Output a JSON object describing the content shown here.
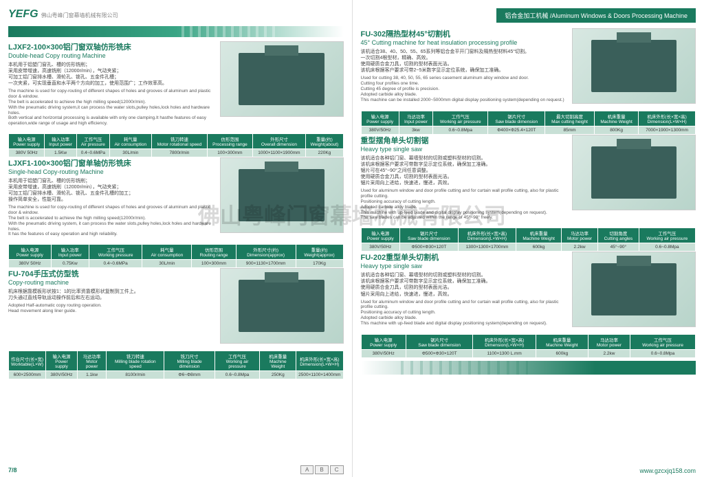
{
  "logo": "YEFG",
  "logoSub": "佛山粤峰门窗幕墙机械有限公司",
  "category": "铝合金加工机械 /Aluminum Windows & Doors Processing Machine",
  "watermark": "佛山粤峰门窗幕墙机械有限公司",
  "pageNum": "7/8",
  "tabs": [
    "A",
    "B",
    "C"
  ],
  "url": "www.gzcxjq158.com",
  "left": [
    {
      "cn": "LJXF2-100×300铝门窗双轴仿形铣床",
      "en": "Double-head Copy routing Machine",
      "desc": "本机用于铝塑门窗孔、槽的仿形铣削；\n采用皮带增速，高速铣削（12000r/min），气动夹紧；\n可加工铝门窗排水槽、滑轮孔、锁孔、五金件孔槽；\n一次夹紧，可实现垂直和水平两个方向的加工，使用范围广；工作效率高。",
      "descEn": "The machine is used for copy-routing of different shapes of holes and grooves of aluminum and plastic door & window.\nThe belt is accelerated to achieve the high milling speed(12000r/min).\nWith the pneumatic driving system,it can process the water slots,pulley holes,lock holes and hardware holes.\nBoth vertical and horizontal processing is available with only one clamping.It hasthe features of easy operation,wide range of usage and high efficiency.",
      "spec": {
        "h": [
          "输入电源\nPower supply",
          "输入功率\nInput power",
          "工作气压\nAir pressure",
          "耗气量\nAir consumption",
          "铣刀转速\nMotor rotational speed",
          "仿形范围\nProcessing range",
          "外形尺寸\nOverall dimension",
          "重量(约)\nWeight(about)"
        ],
        "r": [
          "380V 50Hz",
          "1.5Kw",
          "0.4~0.6MPa",
          "30L/min",
          "7800r/min",
          "100×300mm",
          "1000×1100×1900mm",
          "220Kg"
        ]
      }
    },
    {
      "cn": "LJXF1-100×300铝门窗单轴仿形铣床",
      "en": "Single-head Copy-routing Machine",
      "desc": "本机用于铝塑门窗孔、槽的仿形铣削；\n采用皮带增速，高速铣削（12000r/min），气动夹紧；\n可加工铝门窗排水槽、滑轮孔、锁孔、五金件孔槽的加工；\n操作简单安全，性能可靠。",
      "descEn": "The machine is used for copy-routing of different shapes of holes and grooves of aluminum and plastic door & window.\nThe belt is accelerated to achieve the high milling speed(12000r/min).\nWith the pneumatic driving system, it can process the water slots,pulley holes,lock holes and hardware holes.\nIt has the features of easy operation and high reliability.",
      "spec": {
        "h": [
          "输入电源\nPower supply",
          "输入功率\nInput power",
          "工作气压\nWorking pressure",
          "耗气量\nAir consumption",
          "仿形范围\nRouting range",
          "外形尺寸(约)\nDimension(approx)",
          "重量(约)\nWeight(approx)"
        ],
        "r": [
          "380V 50Hz",
          "0.75Kw",
          "0.4~0.6MPa",
          "30L/min",
          "100×300mm",
          "900×1130×1700mm",
          "170Kg"
        ]
      }
    },
    {
      "cn": "FU-704手压式仿型铣",
      "en": "Copy-routing machine",
      "desc": "机床根据靠模板形状按1：1的比率资靠模形状复制到工件上。\n刀头通过直线导轨运动操作前后和左右运动。",
      "descEn": "Adopted Half-automatic copy routing operation.\nHead movement along liner guide.",
      "spec": {
        "h": [
          "作台尺寸(长×宽)\nWorktable(L×W)",
          "输入电源\nPower supply",
          "马达功率\nMotor power",
          "铣刀转速\nMilling blade rotation speed",
          "铣刀尺寸\nMilling blade dimension",
          "工作气压\nWorking air pressure",
          "机床重量\nMachine Weight",
          "机床外形(长×宽×高)\nDimension(L×W×H)"
        ],
        "r": [
          "600×2500mm",
          "380V/50Hz",
          "1.1kw",
          "8100r/min",
          "Φ6~Φ8mm",
          "0.6~0.8Mpa",
          "250Kg",
          "2500×1100×1400mm"
        ]
      }
    }
  ],
  "right": [
    {
      "cn": "FU-302隔热型材45°切割机",
      "en": "45° Cutting machine for heat insulation processing profile",
      "desc": "该机适合38、40、50、55、65系列等铝合金平开门窗料及隔热型材料45°切割。\n一次切割4根型材，精确、高效。\n使用硬质合金刀具，切割的型材表面光洁。\n该机床根据客户要求可带2~5米数字显示定位系统，确保加工准确。",
      "descEn": "Used for cutting 38, 40, 50, 55, 65 series casement aluminum alloy window and door.\nCutting four profiles one time.\nCutting 45 degree of profile is precision.\nAdopted carbide alloy blade.\nThis machine can be installed 2000~5000mm digital display positioning system(depending on request.)",
      "spec": {
        "h": [
          "输入电源\nPower supply",
          "马达功率\nInput power",
          "工作气压\nWorking air pressure",
          "锯片尺寸\nSaw blade dimension",
          "最大切割高度\nMax cutting height",
          "机床重量\nMachine Weight",
          "机床外形(长×宽×高)\nDimension(L×W×H)"
        ],
        "r": [
          "380V/50Hz",
          "3kw",
          "0.6~0.8Mpa",
          "Φ400×Φ25.4×120T",
          "85mm",
          "800Kg",
          "7000×1900×1300mm"
        ]
      }
    },
    {
      "cn": "重型摆角单头切割锯",
      "en": "Heavy type single saw",
      "desc": "该机适合各种铝门窗、幕墙型材的切割或塑料型材的切割。\n该机床根据客户要求可带数字显示定位系统，确保加工准确。\n锯片可在45°~90°之间任意调整。\n使用硬质合金刀具，切割的型材表面光洁。\n锯片采用向上进给，快速进，慢进，高效。",
      "descEn": "Used for aluminum window and door profile cutting and for curtain wall profile cutting, also for plastic profile cutting.\nPositioning accuracy of cutting length.\nAdopted carbide alloy blade.\nThis machine with up-feed blade and digital display positioning system(depending on request).\nThe saw blades can be adjusted within the range of 45°~90° freely.",
      "spec": {
        "h": [
          "输入电源\nPower supply",
          "锯片尺寸\nSaw blade dimension",
          "机床外形(长×宽×高)\nDimension(L×W×H)",
          "机床重量\nMachine Weight",
          "马达功率\nMotor power",
          "切割角度\nCutting angles",
          "工作气压\nWorking air pressure"
        ],
        "r": [
          "380V/50Hz",
          "Φ500×Φ30×120T",
          "1300×1300×1700mm",
          "600kg",
          "2.2kw",
          "45°~90°",
          "0.6~0.8Mpa"
        ]
      }
    },
    {
      "cn": "FU-202重型单头切割机",
      "en": "Heavy type single saw",
      "desc": "该机适合各种铝门窗、幕墙型材的切割或塑料型材的切割。\n该机床根据客户要求可带数字显示定位系统，确保加工准确。\n使用硬质合金刀具，切割的型材表面光洁。\n锯片采用向上进给，快速进，慢进，高效。",
      "descEn": "Used for aluminum window and door profile cutting and for curtain wall profile cutting, also for plastic profile cutting.\nPositioning accuracy of cutting length.\nAdopted carbide alloy blade.\nThis machine with up-feed blade and digital display positioning system(depending on request).",
      "spec": {
        "h": [
          "输入电源\nPower supply",
          "锯片尺寸\nSaw blade dimension",
          "机床外形(长×宽×高)\nDimension(L×W×H)",
          "机床重量\nMachine Weight",
          "马达功率\nMotor power",
          "工作气压\nWorking air pressure"
        ],
        "r": [
          "380V/50Hz",
          "Φ500×Φ30×120T",
          "1100×1300 L.mm",
          "600kg",
          "2.2kw",
          "0.6~0.8Mpa"
        ]
      }
    }
  ]
}
